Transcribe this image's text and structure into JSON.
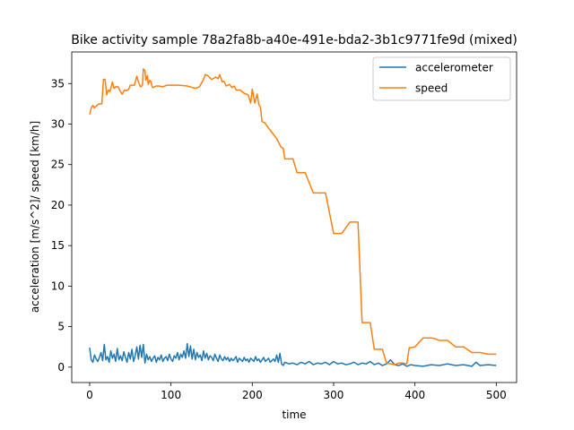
{
  "chart_data": {
    "type": "line",
    "title": "Bike activity sample 78a2fa8b-a40e-491e-bda2-3b1c9771fe9d (mixed)",
    "xlabel": "time",
    "ylabel": "acceleration [m/s^2]/ speed [km/h]",
    "xlim": [
      -22,
      525
    ],
    "ylim": [
      -1.9,
      38.9
    ],
    "x_ticks": [
      0,
      100,
      200,
      300,
      400,
      500
    ],
    "y_ticks": [
      0,
      5,
      10,
      15,
      20,
      25,
      30,
      35
    ],
    "grid": false,
    "legend_position": "top-right",
    "series": [
      {
        "name": "accelerometer",
        "color": "#1f77b4",
        "x": [
          0,
          2,
          4,
          6,
          8,
          10,
          12,
          14,
          16,
          18,
          20,
          22,
          24,
          26,
          28,
          30,
          32,
          34,
          36,
          38,
          40,
          42,
          44,
          46,
          48,
          50,
          52,
          54,
          56,
          58,
          60,
          62,
          64,
          66,
          68,
          70,
          72,
          74,
          76,
          78,
          80,
          82,
          84,
          86,
          88,
          90,
          92,
          94,
          96,
          98,
          100,
          102,
          104,
          106,
          108,
          110,
          112,
          114,
          116,
          118,
          120,
          122,
          124,
          126,
          128,
          130,
          132,
          134,
          136,
          138,
          140,
          142,
          144,
          146,
          148,
          150,
          152,
          154,
          156,
          158,
          160,
          162,
          164,
          166,
          168,
          170,
          172,
          174,
          176,
          178,
          180,
          182,
          184,
          186,
          188,
          190,
          192,
          194,
          196,
          198,
          200,
          202,
          204,
          206,
          208,
          210,
          212,
          214,
          216,
          218,
          220,
          222,
          224,
          226,
          228,
          230,
          232,
          234,
          236,
          238,
          240,
          245,
          250,
          255,
          260,
          265,
          270,
          275,
          280,
          285,
          290,
          295,
          300,
          305,
          310,
          315,
          320,
          325,
          330,
          335,
          340,
          345,
          350,
          355,
          360,
          365,
          370,
          375,
          380,
          385,
          390,
          395,
          400,
          410,
          420,
          430,
          440,
          450,
          460,
          470,
          475,
          480,
          490,
          500
        ],
        "y": [
          2.4,
          0.9,
          0.6,
          1.5,
          1.0,
          0.7,
          1.2,
          1.8,
          0.8,
          2.8,
          0.9,
          1.3,
          0.6,
          2.0,
          1.1,
          1.6,
          0.7,
          2.3,
          0.9,
          1.4,
          0.8,
          1.9,
          1.2,
          0.6,
          1.8,
          1.0,
          2.2,
          0.7,
          1.4,
          2.5,
          1.0,
          2.7,
          1.2,
          2.8,
          0.5,
          1.6,
          0.9,
          1.3,
          0.7,
          1.1,
          1.4,
          0.6,
          1.2,
          0.9,
          1.5,
          0.7,
          1.1,
          1.3,
          0.8,
          1.6,
          1.0,
          0.7,
          1.4,
          1.1,
          1.8,
          0.9,
          1.6,
          1.2,
          2.0,
          1.1,
          2.9,
          1.3,
          2.6,
          1.0,
          2.2,
          0.9,
          1.8,
          1.2,
          1.5,
          0.8,
          2.0,
          1.1,
          1.7,
          0.9,
          1.4,
          1.2,
          0.8,
          1.6,
          1.1,
          0.7,
          1.5,
          1.0,
          0.8,
          1.3,
          0.9,
          1.2,
          0.7,
          1.1,
          0.8,
          1.0,
          1.3,
          0.6,
          1.1,
          0.9,
          0.7,
          1.2,
          0.8,
          1.0,
          0.6,
          1.1,
          0.9,
          0.7,
          1.3,
          0.8,
          1.0,
          0.6,
          0.9,
          1.2,
          0.7,
          0.9,
          1.1,
          0.6,
          0.8,
          1.0,
          0.7,
          1.5,
          0.6,
          1.7,
          0.4,
          0.2,
          0.6,
          0.4,
          0.5,
          0.3,
          0.6,
          0.4,
          0.7,
          0.3,
          0.5,
          0.4,
          0.6,
          0.3,
          0.7,
          0.4,
          0.5,
          0.3,
          0.4,
          0.6,
          0.3,
          0.5,
          0.4,
          0.7,
          0.3,
          0.5,
          0.2,
          0.4,
          0.9,
          0.3,
          0.2,
          0.4,
          0.1,
          0.3,
          0.2,
          0.1,
          0.3,
          0.2,
          0.4,
          0.2,
          0.3,
          0.1,
          0.6,
          0.2,
          0.3,
          0.2
        ]
      },
      {
        "name": "speed",
        "color": "#ff7f0e",
        "x": [
          0,
          2,
          4,
          6,
          10,
          12,
          15,
          17,
          19,
          21,
          23,
          25,
          28,
          30,
          32,
          35,
          38,
          40,
          43,
          45,
          48,
          50,
          55,
          58,
          60,
          62,
          63,
          65,
          66,
          68,
          69,
          71,
          72,
          74,
          75,
          77,
          78,
          80,
          82,
          85,
          90,
          95,
          100,
          110,
          120,
          130,
          135,
          140,
          142,
          145,
          150,
          155,
          158,
          160,
          163,
          165,
          168,
          172,
          175,
          178,
          180,
          185,
          190,
          195,
          198,
          200,
          203,
          206,
          208,
          210,
          212,
          215,
          220,
          230,
          235,
          238,
          240,
          243,
          248,
          250,
          255,
          265,
          275,
          285,
          290,
          300,
          305,
          310,
          320,
          330,
          335,
          340,
          345,
          350,
          355,
          360,
          365,
          370,
          375,
          380,
          385,
          390,
          393,
          395,
          400,
          410,
          415,
          420,
          425,
          430,
          440,
          450,
          455,
          460,
          470,
          480,
          490,
          500
        ],
        "y": [
          31.2,
          32.0,
          32.3,
          32.0,
          32.4,
          32.5,
          32.5,
          35.5,
          35.5,
          33.6,
          34.2,
          34.0,
          35.2,
          34.4,
          34.6,
          34.6,
          34.0,
          33.7,
          34.2,
          34.1,
          34.3,
          34.8,
          34.8,
          35.9,
          35.2,
          34.7,
          34.6,
          34.8,
          36.8,
          36.6,
          35.4,
          36.0,
          34.9,
          35.4,
          35.3,
          34.6,
          34.5,
          34.6,
          34.7,
          34.7,
          34.6,
          34.8,
          34.8,
          34.8,
          34.7,
          34.4,
          34.6,
          35.5,
          36.1,
          36.0,
          35.5,
          35.8,
          35.6,
          36.1,
          35.2,
          35.3,
          34.7,
          34.9,
          34.5,
          34.7,
          34.2,
          34.2,
          33.8,
          33.6,
          32.6,
          34.3,
          32.6,
          33.7,
          32.4,
          32.1,
          30.3,
          30.2,
          29.5,
          28.2,
          27.2,
          27.0,
          25.7,
          25.7,
          25.7,
          25.7,
          24.0,
          24.0,
          21.5,
          21.5,
          21.5,
          16.5,
          16.5,
          16.5,
          17.9,
          17.9,
          5.5,
          5.5,
          5.5,
          2.2,
          2.2,
          2.2,
          0.5,
          0.4,
          0.3,
          0.5,
          0.5,
          0.4,
          2.4,
          2.4,
          2.5,
          3.6,
          3.6,
          3.6,
          3.5,
          3.3,
          3.3,
          2.5,
          2.5,
          2.5,
          1.8,
          1.8,
          1.6,
          1.6
        ]
      }
    ]
  }
}
